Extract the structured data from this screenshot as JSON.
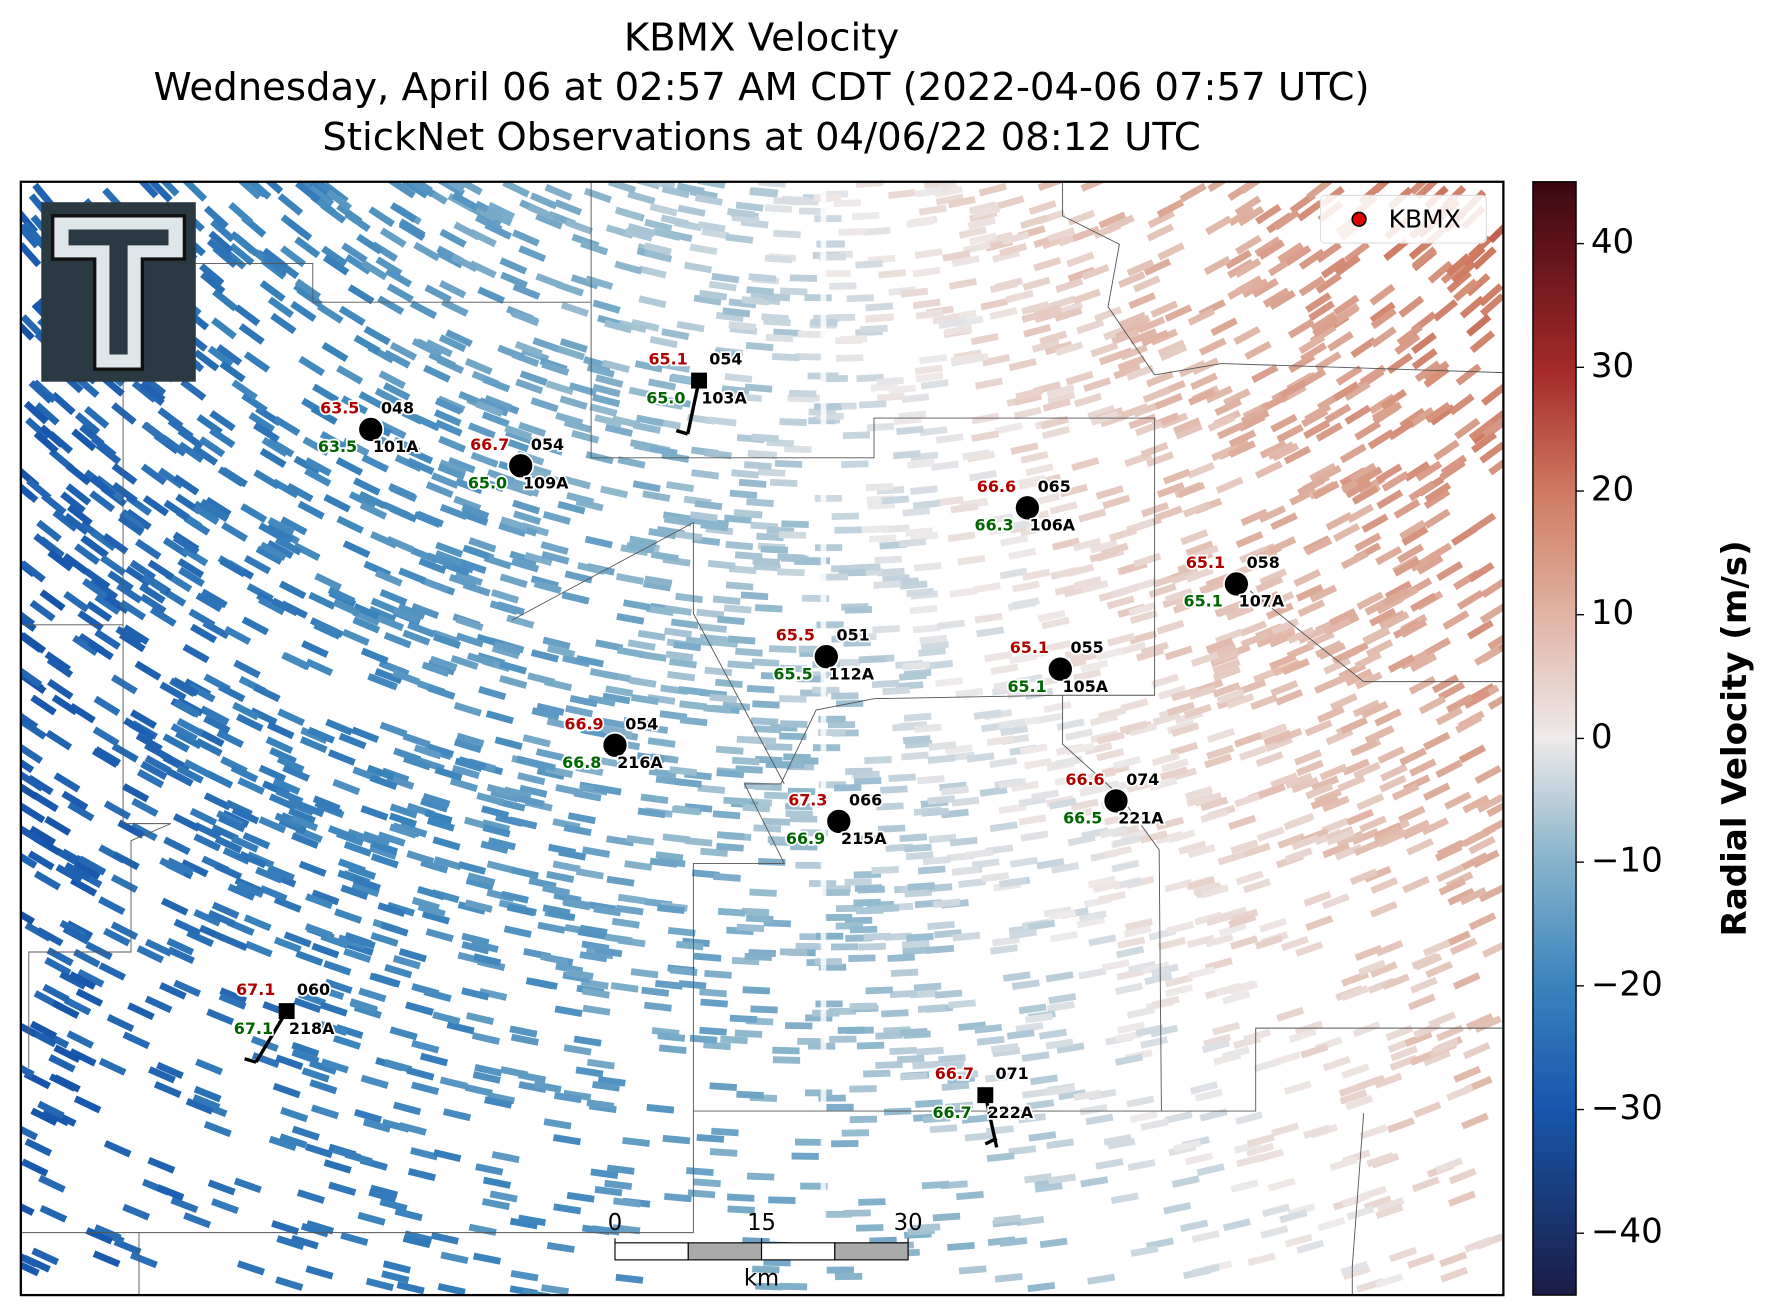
{
  "header": {
    "title": "KBMX Velocity",
    "subtitle": "Wednesday, April 06 at 02:57 AM CDT (2022-04-06 07:57 UTC)",
    "observations": "StickNet Observations at 04/06/22 08:12 UTC"
  },
  "legend": {
    "label": "KBMX",
    "color": "#e00000"
  },
  "colorbar": {
    "label": "Radial Velocity (m/s)",
    "lim": [
      -45,
      45
    ],
    "ticks": [
      {
        "value": -40,
        "label": "−40"
      },
      {
        "value": -30,
        "label": "−30"
      },
      {
        "value": -20,
        "label": "−20"
      },
      {
        "value": -10,
        "label": "−10"
      },
      0,
      10,
      20,
      30,
      40
    ]
  },
  "scale_bar": {
    "ticks": [
      0,
      15,
      30
    ],
    "unit": "km"
  },
  "stations": [
    {
      "id": "101A",
      "temp": "63.5",
      "dewpoint": "63.5",
      "pressure": "048"
    },
    {
      "id": "109A",
      "temp": "66.7",
      "dewpoint": "65.0",
      "pressure": "054"
    },
    {
      "id": "103A",
      "temp": "65.1",
      "dewpoint": "65.0",
      "pressure": "054"
    },
    {
      "id": "106A",
      "temp": "66.6",
      "dewpoint": "66.3",
      "pressure": "065"
    },
    {
      "id": "107A",
      "temp": "65.1",
      "dewpoint": "65.1",
      "pressure": "058"
    },
    {
      "id": "112A",
      "temp": "65.5",
      "dewpoint": "65.5",
      "pressure": "051"
    },
    {
      "id": "105A",
      "temp": "65.1",
      "dewpoint": "65.1",
      "pressure": "055"
    },
    {
      "id": "216A",
      "temp": "66.9",
      "dewpoint": "66.8",
      "pressure": "054"
    },
    {
      "id": "221A",
      "temp": "66.6",
      "dewpoint": "66.5",
      "pressure": "074"
    },
    {
      "id": "215A",
      "temp": "67.3",
      "dewpoint": "66.9",
      "pressure": "066"
    },
    {
      "id": "218A",
      "temp": "67.1",
      "dewpoint": "67.1",
      "pressure": "060"
    },
    {
      "id": "222A",
      "temp": "66.7",
      "dewpoint": "66.7",
      "pressure": "071"
    }
  ]
}
